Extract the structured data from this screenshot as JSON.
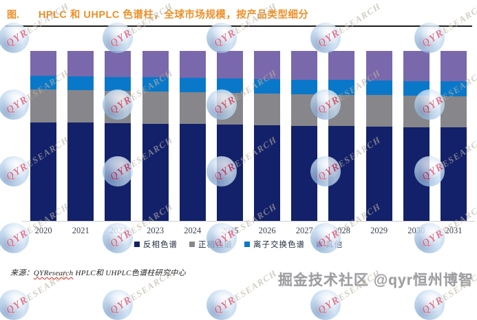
{
  "title": {
    "prefix": "图.",
    "text": "HPLC 和 UHPLC 色谱柱，全球市场规模，按产品类型细分"
  },
  "source": {
    "label": "来源：",
    "brand": "QYResearch",
    "rest": " HPLC和 UHPLC色谱柱研究中心"
  },
  "watermark": {
    "brand_red": "QYR",
    "brand_tail": "ESEARCH",
    "bottom_text": "掘金技术社区 @qyr恒州博智"
  },
  "chart_data": {
    "type": "bar",
    "stacked": true,
    "percent_stacked": true,
    "title": "HPLC 和 UHPLC 色谱柱，全球市场规模，按产品类型细分",
    "xlabel": "",
    "ylabel": "",
    "ylim": [
      0,
      100
    ],
    "grid": false,
    "legend_position": "bottom",
    "categories": [
      "2020",
      "2021",
      "2022",
      "2023",
      "2024",
      "2025",
      "2026",
      "2027",
      "2028",
      "2029",
      "2030",
      "2031"
    ],
    "series": [
      {
        "name": "反相色谱",
        "color": "#13216A",
        "values": [
          58.1,
          57.8,
          57.5,
          57.2,
          56.9,
          56.6,
          56.3,
          56.0,
          55.8,
          55.5,
          55.2,
          55.0
        ]
      },
      {
        "name": "正相色谱",
        "color": "#87868A",
        "values": [
          19.1,
          19.0,
          18.9,
          18.9,
          18.8,
          18.7,
          18.6,
          18.5,
          18.4,
          18.4,
          18.3,
          18.2
        ]
      },
      {
        "name": "离子交换色谱",
        "color": "#0A78C9",
        "values": [
          8.3,
          8.4,
          8.4,
          8.5,
          8.5,
          8.6,
          8.7,
          8.7,
          8.8,
          8.9,
          8.9,
          9.0
        ]
      },
      {
        "name": "其他",
        "color": "#7A68AC",
        "values": [
          14.5,
          14.8,
          15.2,
          15.4,
          15.8,
          16.1,
          16.4,
          16.8,
          17.0,
          17.2,
          17.6,
          17.8
        ]
      }
    ]
  }
}
